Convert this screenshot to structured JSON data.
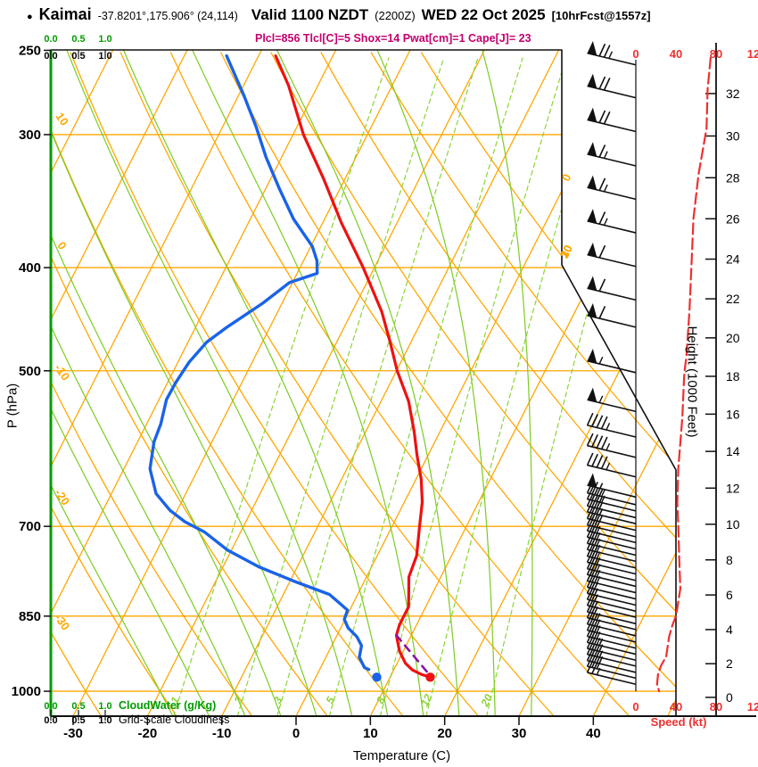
{
  "header": {
    "bullet": "●",
    "station": "Kaimai",
    "coords": "-37.8201°,175.906° (24,114)",
    "valid": "Valid 1100 NZDT",
    "zulu": "(2200Z)",
    "date": "WED 22 Oct 2025",
    "fcst": "[10hrFcst@1557z]",
    "indices": "Plcl=856 Tlcl[C]=5 Shox=14 Pwat[cm]=1 Cape[J]= 23",
    "indices_color": "#c3006f"
  },
  "axes": {
    "pressure_label": "P (hPa)",
    "pressure_ticks": [
      250,
      300,
      400,
      500,
      700,
      850,
      1000
    ],
    "temp_label": "Temperature (C)",
    "temp_ticks": [
      -30,
      -20,
      -10,
      0,
      10,
      20,
      30,
      40
    ],
    "height_label": "Height (1000 Feet)",
    "height_ticks": [
      0,
      2,
      4,
      6,
      8,
      10,
      12,
      14,
      16,
      18,
      20,
      22,
      24,
      26,
      28,
      30,
      32
    ],
    "speed_label": "Speed (kt)",
    "speed_tick_labels": [
      "0",
      "40",
      "80",
      "12"
    ],
    "cloud_scale_labels": [
      "0.0",
      "0.5",
      "1.0"
    ],
    "cloudwater_label": "CloudWater (g/Kg)",
    "cloudiness_label": "Grid-Scale Cloudiness",
    "isotherm_labels": [
      0,
      10,
      20,
      30
    ],
    "dry_adiabat_labels": [
      10,
      0,
      -10,
      -20,
      -30
    ],
    "mixing_ratio_labels": [
      1,
      2,
      3,
      5,
      8,
      12,
      20
    ]
  },
  "chart_data": {
    "type": "line",
    "description": "Skew-T log-P atmospheric sounding with wind barbs, wind speed profile and height scale",
    "pressure_range_hpa": [
      250,
      1055
    ],
    "grid": {
      "isotherms_c": {
        "min": -100,
        "max": 50,
        "step": 10
      },
      "dry_adiabats_c": {
        "min": -40,
        "max": 90,
        "step": 10
      },
      "moist_adiabats_c": [
        -20,
        -15,
        -10,
        -5,
        0,
        5,
        10,
        15,
        20,
        25,
        30
      ],
      "mixing_ratios_gkg": [
        1,
        2,
        3,
        5,
        8,
        12,
        20
      ],
      "pressure_lines_hpa": [
        300,
        400,
        500,
        700,
        850,
        1000
      ]
    },
    "temperature_profile_p_c": [
      [
        253,
        -47.7
      ],
      [
        270,
        -43.9
      ],
      [
        300,
        -38.6
      ],
      [
        330,
        -32.9
      ],
      [
        363,
        -27.5
      ],
      [
        400,
        -21.5
      ],
      [
        440,
        -16.0
      ],
      [
        470,
        -12.8
      ],
      [
        500,
        -9.9
      ],
      [
        534,
        -6.3
      ],
      [
        570,
        -3.5
      ],
      [
        600,
        -1.5
      ],
      [
        632,
        0.7
      ],
      [
        664,
        2.4
      ],
      [
        700,
        3.7
      ],
      [
        746,
        5.3
      ],
      [
        781,
        5.7
      ],
      [
        833,
        7.7
      ],
      [
        866,
        7.7
      ],
      [
        886,
        8.0
      ],
      [
        917,
        9.5
      ],
      [
        941,
        11.1
      ],
      [
        955,
        12.5
      ],
      [
        964,
        14.0
      ],
      [
        970,
        15.4
      ]
    ],
    "dewpoint_profile_p_c": [
      [
        253,
        -54.3
      ],
      [
        276,
        -49.2
      ],
      [
        295,
        -45.5
      ],
      [
        315,
        -42.1
      ],
      [
        337,
        -38.2
      ],
      [
        360,
        -34.2
      ],
      [
        382,
        -29.8
      ],
      [
        394,
        -28.2
      ],
      [
        405,
        -27.3
      ],
      [
        413,
        -30.4
      ],
      [
        432,
        -32.6
      ],
      [
        455,
        -35.8
      ],
      [
        470,
        -37.5
      ],
      [
        491,
        -38.5
      ],
      [
        513,
        -38.9
      ],
      [
        532,
        -39.0
      ],
      [
        561,
        -38.1
      ],
      [
        583,
        -37.8
      ],
      [
        618,
        -36.5
      ],
      [
        652,
        -34.0
      ],
      [
        676,
        -31.0
      ],
      [
        693,
        -28.2
      ],
      [
        709,
        -24.8
      ],
      [
        737,
        -20.5
      ],
      [
        764,
        -15.2
      ],
      [
        788,
        -9.5
      ],
      [
        811,
        -3.8
      ],
      [
        839,
        -0.3
      ],
      [
        856,
        -0.1
      ],
      [
        872,
        1.0
      ],
      [
        889,
        2.8
      ],
      [
        906,
        4.0
      ],
      [
        929,
        4.5
      ],
      [
        950,
        5.9
      ],
      [
        954,
        6.6
      ]
    ],
    "parcel_path_p_c": [
      [
        886,
        8.0
      ],
      [
        968,
        15.4
      ]
    ],
    "surface_markers": {
      "temperature_p_c": [
        970,
        15.4
      ],
      "dewpoint_p_c": [
        970,
        8.2
      ]
    },
    "wind_barbs_p_kt": [
      [
        258,
        75
      ],
      [
        277,
        70
      ],
      [
        298,
        70
      ],
      [
        321,
        65
      ],
      [
        345,
        65
      ],
      [
        371,
        65
      ],
      [
        399,
        60
      ],
      [
        429,
        60
      ],
      [
        455,
        60
      ],
      [
        502,
        55
      ],
      [
        546,
        55
      ],
      [
        577,
        45
      ],
      [
        603,
        45
      ],
      [
        629,
        45
      ],
      [
        657,
        50
      ],
      [
        668,
        35
      ],
      [
        677,
        35
      ],
      [
        687,
        30
      ],
      [
        696,
        30
      ],
      [
        706,
        30
      ],
      [
        716,
        30
      ],
      [
        725,
        25
      ],
      [
        735,
        25
      ],
      [
        745,
        25
      ],
      [
        755,
        25
      ],
      [
        766,
        25
      ],
      [
        776,
        25
      ],
      [
        787,
        25
      ],
      [
        797,
        25
      ],
      [
        808,
        25
      ],
      [
        819,
        20
      ],
      [
        830,
        20
      ],
      [
        841,
        20
      ],
      [
        852,
        20
      ],
      [
        864,
        20
      ],
      [
        875,
        25
      ],
      [
        887,
        25
      ],
      [
        899,
        25
      ],
      [
        911,
        25
      ],
      [
        923,
        25
      ],
      [
        935,
        30
      ],
      [
        947,
        30
      ],
      [
        960,
        30
      ],
      [
        972,
        30
      ],
      [
        985,
        25
      ]
    ],
    "wind_speed_profile_p_kt": [
      [
        254,
        74
      ],
      [
        272,
        71
      ],
      [
        296,
        70
      ],
      [
        327,
        62
      ],
      [
        360,
        57
      ],
      [
        400,
        55
      ],
      [
        440,
        53
      ],
      [
        485,
        50
      ],
      [
        502,
        48
      ],
      [
        554,
        46
      ],
      [
        618,
        42
      ],
      [
        667,
        41
      ],
      [
        697,
        42
      ],
      [
        752,
        43
      ],
      [
        801,
        44
      ],
      [
        848,
        40
      ],
      [
        868,
        36
      ],
      [
        888,
        33
      ],
      [
        928,
        30
      ],
      [
        946,
        25
      ],
      [
        964,
        22
      ],
      [
        985,
        21
      ],
      [
        1000,
        23
      ]
    ]
  },
  "colors": {
    "grid_orange": "#ffa700",
    "moist_green": "#7ccb22",
    "mixing_green": "#8bd433",
    "axis_green": "#009c00",
    "temperature_red": "#ee1111",
    "dewpoint_blue": "#1a63e8",
    "parcel_purple": "#8a12a8",
    "speed_red": "#ee3030",
    "axis_black": "#111111"
  }
}
